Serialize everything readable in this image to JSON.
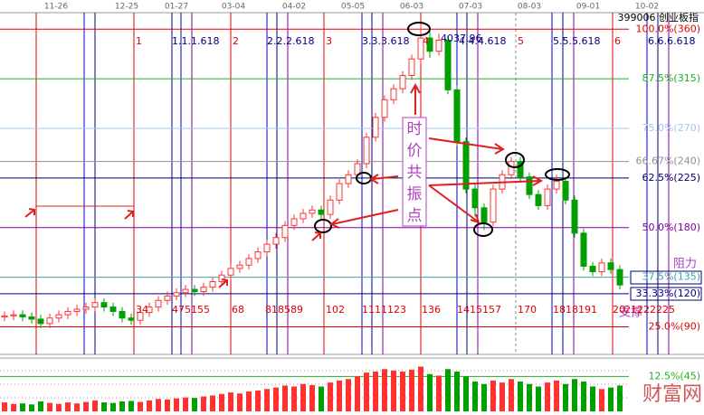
{
  "chart_data": {
    "type": "candlestick",
    "title": "399006 创业板指",
    "x_labels": [
      "11-26",
      "12-25",
      "01-27",
      "03-04",
      "04-02",
      "05-05",
      "06-03",
      "07-03",
      "08-03",
      "09-01",
      "10-02"
    ],
    "ylim": [
      65,
      375
    ],
    "up_color": "#ff3232",
    "down_color": "#00a000",
    "open": [
      99,
      100,
      101,
      99,
      97,
      93,
      98,
      101,
      104,
      106,
      108,
      112,
      108,
      104,
      98,
      96,
      103,
      108,
      114,
      118,
      121,
      124,
      122,
      126,
      131,
      137,
      143,
      146,
      152,
      158,
      165,
      171,
      182,
      188,
      193,
      196,
      192,
      205,
      220,
      228,
      238,
      262,
      280,
      296,
      306,
      318,
      333,
      352,
      340,
      350,
      305,
      258,
      215,
      198,
      185,
      215,
      228,
      240,
      226,
      210,
      200,
      215,
      222,
      205,
      175,
      145,
      140,
      148,
      142
    ],
    "high": [
      104,
      105,
      105,
      103,
      101,
      102,
      105,
      108,
      110,
      112,
      116,
      116,
      112,
      108,
      102,
      107,
      112,
      118,
      122,
      125,
      128,
      128,
      130,
      135,
      141,
      147,
      150,
      156,
      162,
      169,
      175,
      186,
      192,
      197,
      200,
      200,
      209,
      224,
      232,
      242,
      266,
      284,
      300,
      310,
      322,
      337,
      366,
      360,
      356,
      354,
      309,
      262,
      219,
      202,
      219,
      232,
      244,
      244,
      230,
      214,
      219,
      228,
      226,
      209,
      179,
      149,
      152,
      152,
      146
    ],
    "low": [
      95,
      96,
      95,
      93,
      89,
      89,
      94,
      97,
      100,
      102,
      104,
      104,
      100,
      94,
      92,
      92,
      99,
      104,
      110,
      114,
      117,
      118,
      118,
      122,
      127,
      133,
      139,
      142,
      148,
      154,
      161,
      167,
      178,
      184,
      189,
      188,
      188,
      201,
      216,
      224,
      234,
      258,
      276,
      292,
      302,
      314,
      329,
      334,
      336,
      301,
      254,
      211,
      190,
      178,
      181,
      211,
      224,
      222,
      206,
      196,
      196,
      211,
      201,
      171,
      141,
      136,
      136,
      138,
      124
    ],
    "close": [
      100,
      101,
      99,
      97,
      93,
      98,
      101,
      104,
      106,
      108,
      112,
      108,
      104,
      98,
      96,
      103,
      108,
      114,
      118,
      121,
      124,
      122,
      126,
      131,
      137,
      143,
      146,
      152,
      158,
      165,
      171,
      182,
      188,
      193,
      196,
      192,
      205,
      220,
      228,
      238,
      262,
      280,
      296,
      306,
      318,
      333,
      352,
      340,
      350,
      305,
      258,
      215,
      198,
      185,
      215,
      228,
      240,
      226,
      210,
      200,
      215,
      222,
      205,
      175,
      145,
      140,
      148,
      142,
      128
    ],
    "volume": [
      18,
      15,
      16,
      14,
      20,
      17,
      15,
      18,
      16,
      19,
      22,
      18,
      17,
      20,
      21,
      19,
      22,
      25,
      24,
      26,
      28,
      27,
      30,
      32,
      35,
      38,
      36,
      40,
      42,
      45,
      48,
      52,
      50,
      55,
      53,
      50,
      58,
      62,
      65,
      70,
      78,
      80,
      85,
      82,
      80,
      84,
      90,
      75,
      72,
      85,
      80,
      70,
      60,
      55,
      62,
      58,
      65,
      60,
      55,
      50,
      58,
      62,
      55,
      65,
      60,
      50,
      45,
      48,
      52
    ],
    "volume_ylim": [
      0,
      100
    ],
    "levels": [
      {
        "value": 360,
        "label": "100.0%(360)",
        "color": "#e00000"
      },
      {
        "value": 315,
        "label": "87.5%(315)",
        "color": "#20b020"
      },
      {
        "value": 270,
        "label": "75.0%(270)",
        "color": "#a0c8f0"
      },
      {
        "value": 240,
        "label": "66.67%(240)",
        "color": "#909090"
      },
      {
        "value": 225,
        "label": "62.5%(225)",
        "color": "#000060"
      },
      {
        "value": 180,
        "label": "50.0%(180)",
        "color": "#8000a0"
      },
      {
        "value": 135,
        "label": "37.5%(135)",
        "color": "#40a0a0"
      },
      {
        "value": 120,
        "label": "33.33%(120)",
        "color": "#000080"
      },
      {
        "value": 90,
        "label": "25.0%(90)",
        "color": "#e00000"
      },
      {
        "value": 45,
        "label": "12.5%(45)",
        "color": "#20b020"
      }
    ],
    "time_labels": [
      "1",
      "1.1.1.618",
      "2",
      "2.2.2.618",
      "3",
      "3.3.3.618",
      "4",
      "4.4.4.618",
      "5",
      "5.5.5.618",
      "6",
      "6.6.6.618"
    ],
    "count_labels": [
      "34",
      "475155",
      "68",
      "818589",
      "102",
      "1111123",
      "136",
      "1415157",
      "170",
      "1818191",
      "20",
      "21222225"
    ],
    "annotations": {
      "resonance": [
        "时",
        "价",
        "共",
        "振",
        "点"
      ],
      "resistance": "阻力",
      "support": "支撑",
      "peak": "4037.96",
      "watermark": "财富网"
    }
  }
}
